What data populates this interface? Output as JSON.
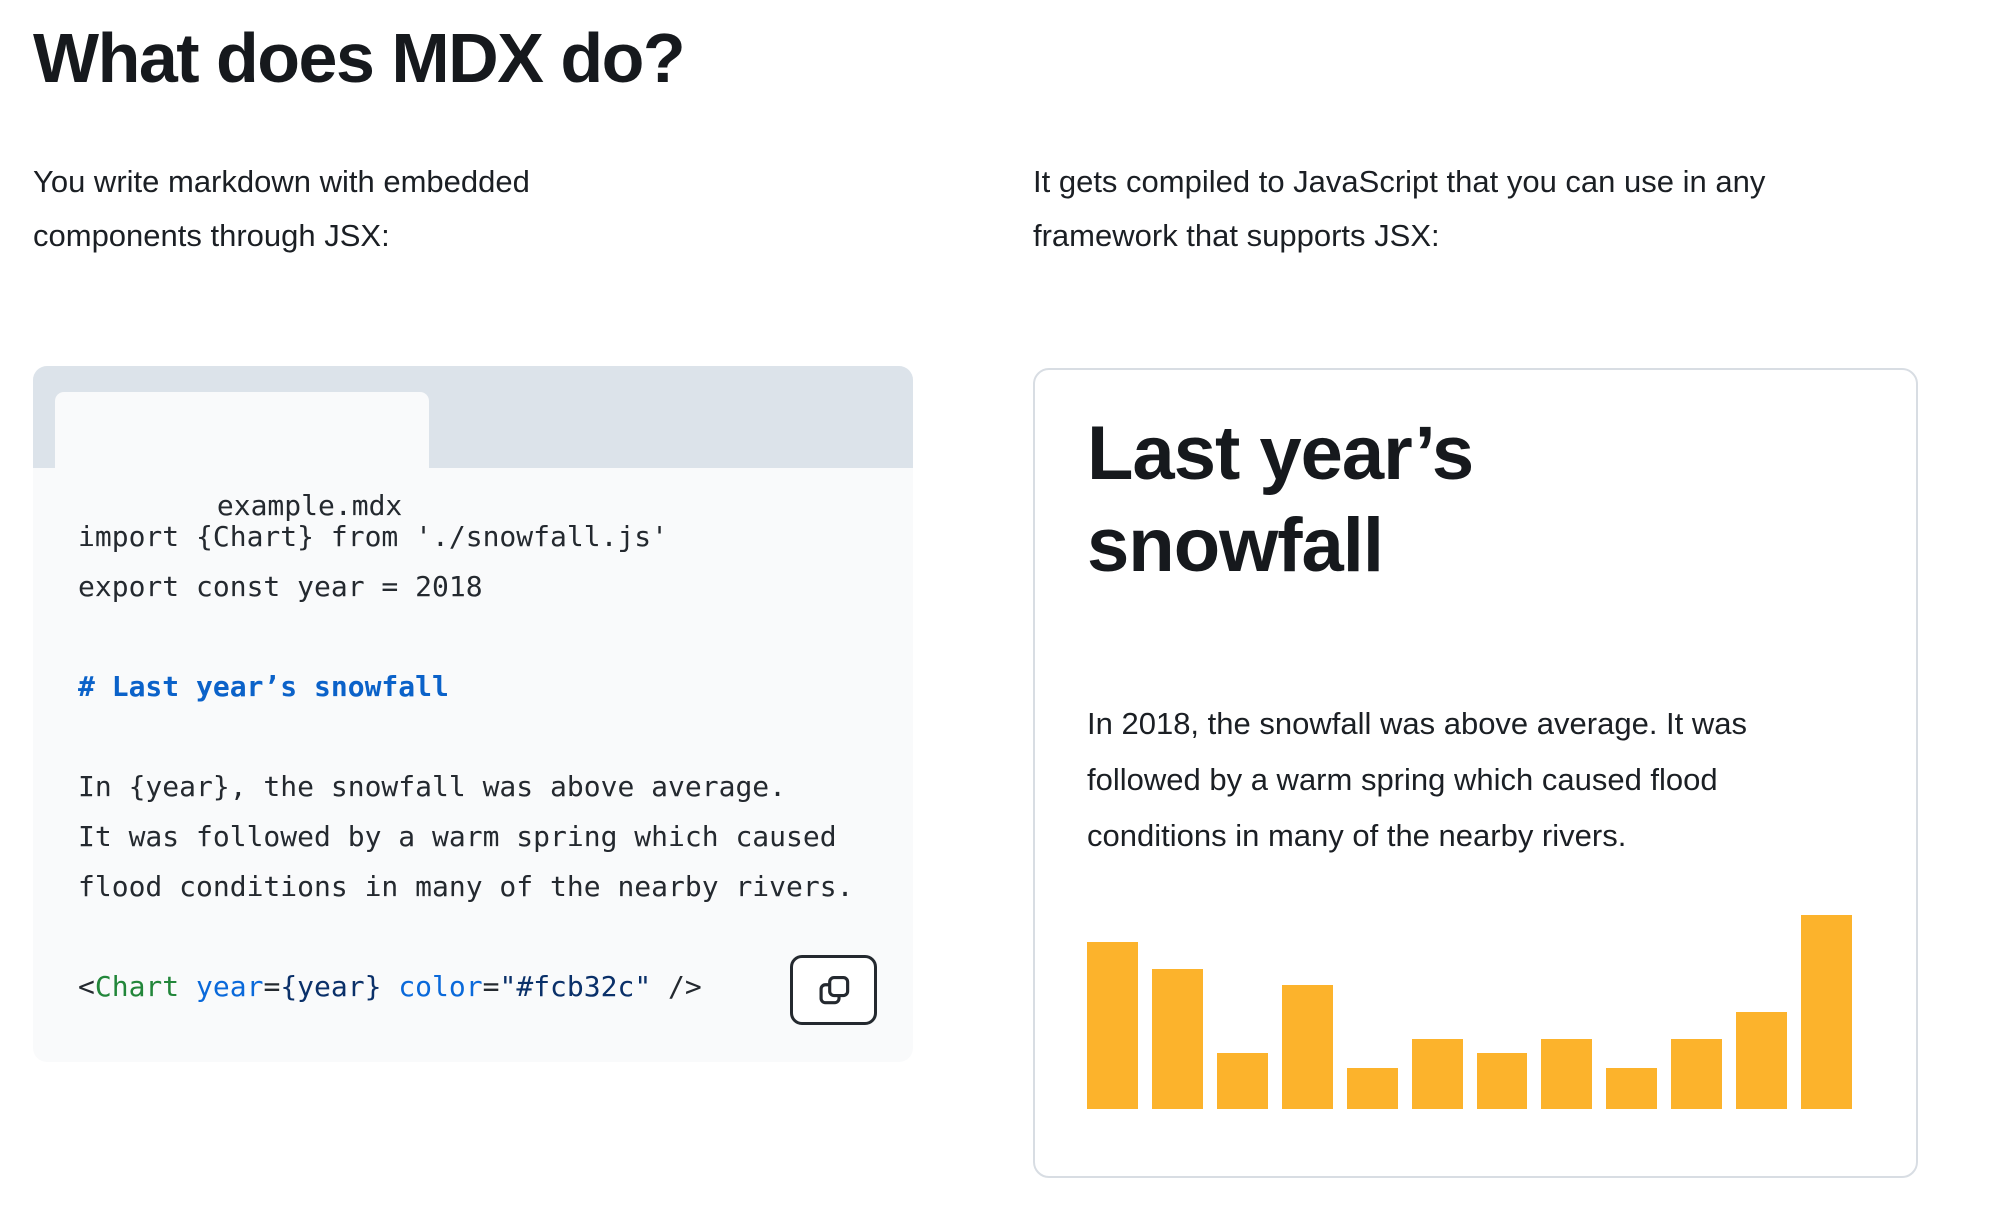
{
  "colors": {
    "accent_orange": "#fcb32c",
    "tab_strip_bg": "#dce3ea",
    "code_bg": "#f9fafb",
    "card_border": "#d8dde3",
    "heading_text": "#16191d",
    "body_text": "#1b1f24"
  },
  "page": {
    "title": "What does MDX do?"
  },
  "left_column": {
    "intro": "You write markdown with embedded components through JSX:",
    "code_block": {
      "tab_label": "example.mdx",
      "copy_button_label": "Copy",
      "syntax_colors": {
        "plain": "#24292f",
        "heading": "#0b62c9",
        "tag": "#22863a",
        "attr": "#0a69da",
        "value": "#0a3069"
      },
      "lines": [
        {
          "spans": [
            {
              "text": "import {Chart} from './snowfall.js'",
              "color": "plain"
            }
          ]
        },
        {
          "spans": [
            {
              "text": "export const year = 2018",
              "color": "plain"
            }
          ]
        },
        {
          "spans": []
        },
        {
          "spans": [
            {
              "text": "# Last year’s snowfall",
              "color": "heading",
              "bold": true
            }
          ]
        },
        {
          "spans": []
        },
        {
          "spans": [
            {
              "text": "In {year}, the snowfall was above average.",
              "color": "plain"
            }
          ]
        },
        {
          "spans": [
            {
              "text": "It was followed by a warm spring which caused",
              "color": "plain"
            }
          ]
        },
        {
          "spans": [
            {
              "text": "flood conditions in many of the nearby rivers.",
              "color": "plain"
            }
          ]
        },
        {
          "spans": []
        },
        {
          "spans": [
            {
              "text": "<",
              "color": "plain"
            },
            {
              "text": "Chart",
              "color": "tag"
            },
            {
              "text": " ",
              "color": "plain"
            },
            {
              "text": "year",
              "color": "attr"
            },
            {
              "text": "=",
              "color": "plain"
            },
            {
              "text": "{year}",
              "color": "value"
            },
            {
              "text": " ",
              "color": "plain"
            },
            {
              "text": "color",
              "color": "attr"
            },
            {
              "text": "=",
              "color": "plain"
            },
            {
              "text": "\"#fcb32c\"",
              "color": "value"
            },
            {
              "text": " />",
              "color": "plain"
            }
          ]
        }
      ]
    }
  },
  "right_column": {
    "intro": "It gets compiled to JavaScript that you can use in any framework that supports JSX:",
    "card": {
      "heading": "Last year’s snowfall",
      "paragraph": "In 2018, the snowfall was above average. It was followed by a warm spring which caused flood conditions in many of the nearby rivers."
    }
  },
  "chart_data": {
    "type": "bar",
    "bar_count": 12,
    "values": [
      86,
      72,
      29,
      64,
      21,
      36,
      29,
      36,
      21,
      36,
      50,
      100
    ],
    "values_unit": "percent of tallest bar (no numeric axis shown on screen)",
    "categories": [],
    "title": "",
    "xlabel": "",
    "ylabel": "",
    "bar_color": "#fcb32c",
    "grid": false,
    "legend": false,
    "axes_visible": false
  }
}
